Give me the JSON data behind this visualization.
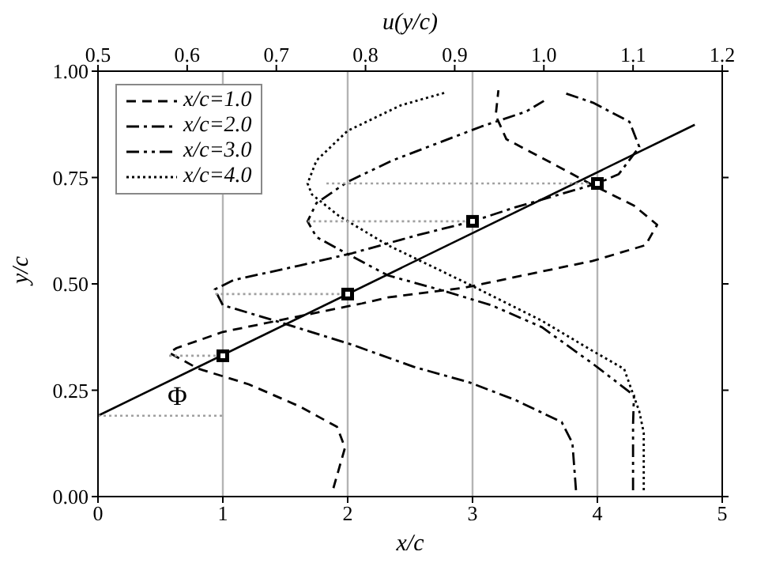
{
  "chart_data": {
    "type": "line",
    "xlabel": "x/c",
    "ylabel": "y/c",
    "x2label": "u(y/c)",
    "xlim": [
      0,
      5
    ],
    "xticks": [
      0,
      1,
      2,
      3,
      4,
      5
    ],
    "ylim": [
      0,
      1
    ],
    "yticks": [
      {
        "value": 0,
        "label": "0.00"
      },
      {
        "value": 0.25,
        "label": "0.25"
      },
      {
        "value": 0.5,
        "label": "0.50"
      },
      {
        "value": 0.75,
        "label": "0.75"
      },
      {
        "value": 1,
        "label": "1.00"
      }
    ],
    "x2lim": [
      0.5,
      1.2
    ],
    "x2ticks": [
      0.5,
      0.6,
      0.7,
      0.8,
      0.9,
      {
        "value": 1,
        "label": "1.0"
      },
      1.1,
      1.2
    ],
    "legend": "top left",
    "ref_lines": [
      {
        "axis": "x",
        "value": 1,
        "color": "#b4b4b4"
      },
      {
        "axis": "x",
        "value": 2,
        "color": "#b4b4b4"
      },
      {
        "axis": "x",
        "value": 3,
        "color": "#b4b4b4"
      },
      {
        "axis": "x",
        "value": 4,
        "color": "#b4b4b4"
      }
    ],
    "annotations": [
      "Φ"
    ],
    "series": [
      {
        "name": "x/c=1.0",
        "axis": "x2",
        "color": "#000000",
        "line_style": "dashed",
        "x": [
          0.764,
          0.777,
          0.768,
          0.726,
          0.669,
          0.612,
          0.58,
          0.588,
          0.64,
          0.726,
          0.796,
          0.825,
          0.911,
          0.986,
          1.055,
          1.114,
          1.127,
          1.101,
          1.055,
          0.998,
          0.958,
          0.946,
          0.949
        ],
        "values": [
          0.02,
          0.115,
          0.164,
          0.212,
          0.264,
          0.301,
          0.338,
          0.349,
          0.387,
          0.424,
          0.454,
          0.468,
          0.491,
          0.524,
          0.554,
          0.591,
          0.639,
          0.684,
          0.732,
          0.796,
          0.84,
          0.896,
          0.955
        ]
      },
      {
        "name": "x/c=2.0",
        "axis": "x2",
        "color": "#000000",
        "line_style": "dashdot",
        "x": [
          1.036,
          1.032,
          1.02,
          0.968,
          0.917,
          0.854,
          0.785,
          0.699,
          0.64,
          0.631,
          0.652,
          0.726,
          0.785,
          0.859,
          0.92,
          0.968,
          1.06,
          1.084,
          1.107,
          1.096,
          1.055,
          1.024
        ],
        "values": [
          0.015,
          0.126,
          0.175,
          0.227,
          0.268,
          0.305,
          0.357,
          0.413,
          0.45,
          0.487,
          0.509,
          0.543,
          0.572,
          0.615,
          0.647,
          0.68,
          0.736,
          0.758,
          0.822,
          0.881,
          0.926,
          0.948
        ]
      },
      {
        "name": "x/c=3.0",
        "axis": "x2",
        "color": "#000000",
        "line_style": "dashdotdot",
        "x": [
          1.1,
          1.1,
          1.101,
          1.055,
          0.998,
          0.941,
          0.882,
          0.825,
          0.78,
          0.745,
          0.735,
          0.745,
          0.78,
          0.83,
          0.88,
          0.93,
          0.98,
          1.0
        ],
        "values": [
          0.015,
          0.17,
          0.238,
          0.312,
          0.398,
          0.45,
          0.487,
          0.52,
          0.57,
          0.61,
          0.647,
          0.69,
          0.74,
          0.79,
          0.83,
          0.87,
          0.905,
          0.93
        ]
      },
      {
        "name": "x/c=4.0",
        "axis": "x2",
        "color": "#000000",
        "line_style": "dotted",
        "x": [
          1.112,
          1.112,
          1.107,
          1.09,
          1.055,
          0.998,
          0.917,
          0.825,
          0.77,
          0.74,
          0.735,
          0.745,
          0.78,
          0.84,
          0.89
        ],
        "values": [
          0.015,
          0.15,
          0.2,
          0.3,
          0.342,
          0.413,
          0.498,
          0.591,
          0.66,
          0.71,
          0.736,
          0.79,
          0.86,
          0.92,
          0.95
        ]
      },
      {
        "color": "#000000",
        "line_style": "solid",
        "x": [
          0,
          4.78
        ],
        "values": [
          0.19,
          0.874
        ]
      },
      {
        "type": "scatter",
        "color": "#000000",
        "marker": "square",
        "x": [
          1,
          2,
          3,
          4
        ],
        "values": [
          0.331,
          0.476,
          0.647,
          0.736
        ]
      },
      {
        "color": "#a0a0a0",
        "line_style": "dotted",
        "x": [
          0,
          1
        ],
        "values": [
          0.19,
          0.19
        ]
      },
      {
        "color": "#a0a0a0",
        "line_style": "dotted",
        "x": [
          0.57,
          1
        ],
        "values": [
          0.331,
          0.331
        ]
      },
      {
        "color": "#a0a0a0",
        "line_style": "dotted",
        "x": [
          0.94,
          2
        ],
        "values": [
          0.476,
          0.476
        ]
      },
      {
        "color": "#a0a0a0",
        "line_style": "dotted",
        "x": [
          1.68,
          3
        ],
        "values": [
          0.647,
          0.647
        ]
      },
      {
        "color": "#a0a0a0",
        "line_style": "dotted",
        "x": [
          1.83,
          4
        ],
        "values": [
          0.736,
          0.736
        ]
      }
    ]
  }
}
